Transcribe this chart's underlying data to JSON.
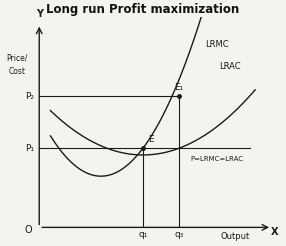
{
  "title": "Long run Profit maximization",
  "xlabel": "Output",
  "x_axis_label": "X",
  "y_axis_label": "Y",
  "origin_label": "O",
  "ylabel_line1": "Price/",
  "ylabel_line2": "Cost",
  "p1_label": "P₁",
  "p2_label": "P₂",
  "q1_label": "q₁",
  "q2_label": "q₃",
  "e1_label": "E",
  "e2_label": "E₁",
  "lrmc_label": "LRMC",
  "lrac_label": "LRAC",
  "price_line_label": "P=LRMC=LRAC",
  "p1": 0.42,
  "p2": 0.65,
  "q1": 0.5,
  "q2": 0.63,
  "bg_color": "#f5f3f0",
  "line_color": "#1a1a1a",
  "curve_color": "#1a1a1a"
}
